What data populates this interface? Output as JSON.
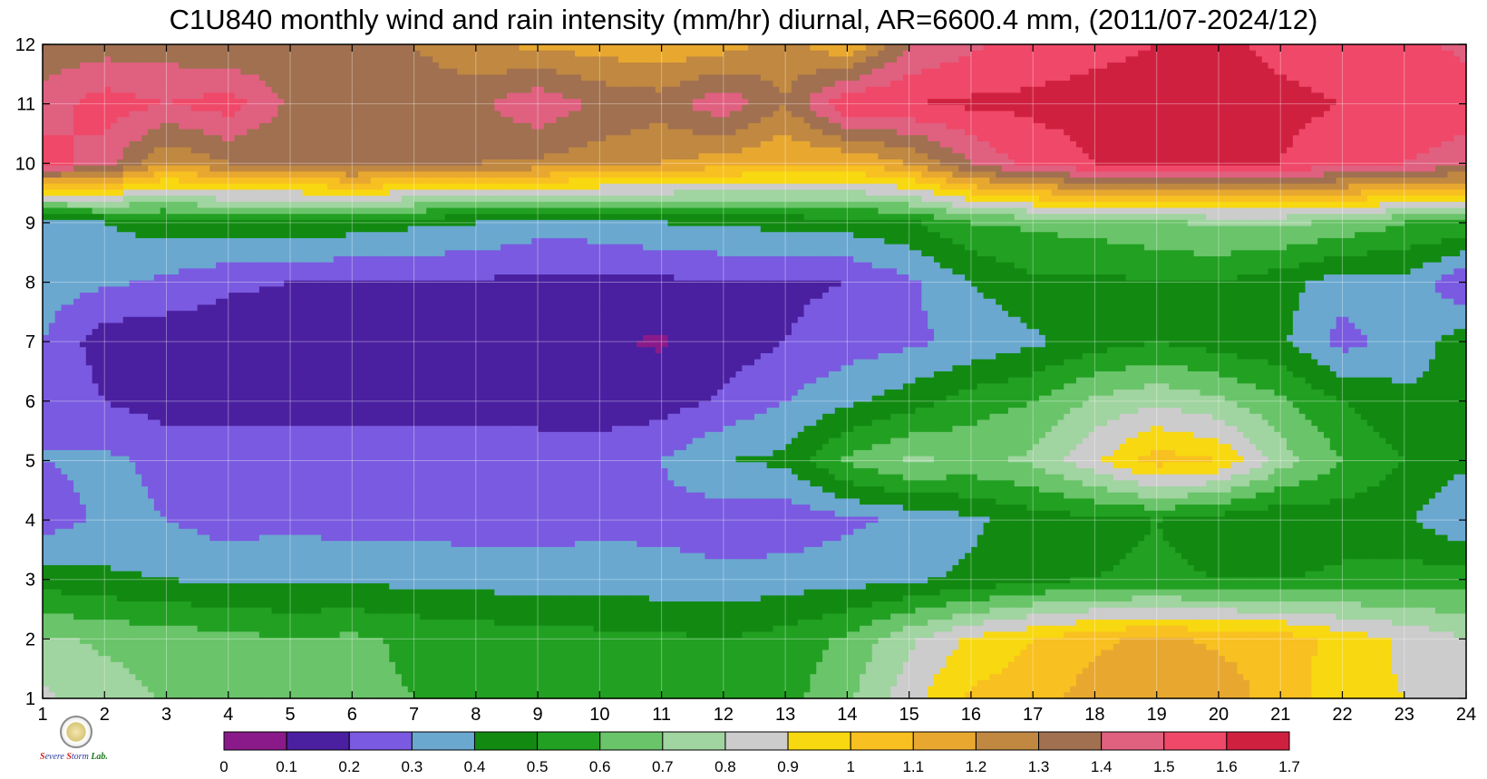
{
  "chart_data": {
    "type": "heatmap",
    "title": "C1U840 monthly wind and rain intensity (mm/hr) diurnal, AR=6600.4 mm, (2011/07-2024/12)",
    "xlabel": "",
    "ylabel": "",
    "x": [
      1,
      2,
      3,
      4,
      5,
      6,
      7,
      8,
      9,
      10,
      11,
      12,
      13,
      14,
      15,
      16,
      17,
      18,
      19,
      20,
      21,
      22,
      23,
      24
    ],
    "y": [
      1,
      2,
      3,
      4,
      5,
      6,
      7,
      8,
      9,
      10,
      11,
      12
    ],
    "xlim": [
      1,
      24
    ],
    "ylim": [
      1,
      12
    ],
    "x_ticks": [
      "1",
      "2",
      "3",
      "4",
      "5",
      "6",
      "7",
      "8",
      "9",
      "10",
      "11",
      "12",
      "13",
      "14",
      "15",
      "16",
      "17",
      "18",
      "19",
      "20",
      "21",
      "22",
      "23",
      "24"
    ],
    "y_ticks": [
      "1",
      "2",
      "3",
      "4",
      "5",
      "6",
      "7",
      "8",
      "9",
      "10",
      "11",
      "12"
    ],
    "z": [
      [
        0.82,
        0.75,
        0.69,
        0.64,
        0.62,
        0.63,
        0.6,
        0.57,
        0.53,
        0.52,
        0.53,
        0.52,
        0.56,
        0.68,
        0.86,
        1.02,
        1.05,
        1.15,
        1.2,
        1.16,
        1.05,
        0.94,
        0.9,
        0.9
      ],
      [
        0.72,
        0.68,
        0.66,
        0.63,
        0.6,
        0.62,
        0.58,
        0.56,
        0.54,
        0.53,
        0.52,
        0.5,
        0.54,
        0.62,
        0.78,
        0.92,
        1.0,
        1.08,
        1.12,
        1.08,
        1.06,
        0.96,
        0.88,
        0.8
      ],
      [
        0.45,
        0.42,
        0.4,
        0.38,
        0.38,
        0.38,
        0.37,
        0.36,
        0.35,
        0.35,
        0.34,
        0.33,
        0.35,
        0.36,
        0.38,
        0.42,
        0.48,
        0.5,
        0.52,
        0.5,
        0.5,
        0.52,
        0.55,
        0.55
      ],
      [
        0.25,
        0.32,
        0.3,
        0.25,
        0.28,
        0.25,
        0.27,
        0.25,
        0.26,
        0.27,
        0.27,
        0.24,
        0.23,
        0.28,
        0.32,
        0.38,
        0.45,
        0.47,
        0.5,
        0.45,
        0.41,
        0.45,
        0.42,
        0.3
      ],
      [
        0.3,
        0.32,
        0.28,
        0.3,
        0.26,
        0.3,
        0.28,
        0.28,
        0.28,
        0.27,
        0.3,
        0.4,
        0.42,
        0.62,
        0.72,
        0.68,
        0.72,
        0.88,
        1.05,
        1.0,
        0.75,
        0.6,
        0.5,
        0.42
      ],
      [
        0.3,
        0.2,
        0.15,
        0.12,
        0.15,
        0.14,
        0.15,
        0.14,
        0.13,
        0.13,
        0.15,
        0.22,
        0.3,
        0.38,
        0.45,
        0.55,
        0.6,
        0.72,
        0.78,
        0.72,
        0.62,
        0.5,
        0.42,
        0.4
      ],
      [
        0.3,
        0.14,
        0.13,
        0.13,
        0.14,
        0.14,
        0.14,
        0.15,
        0.12,
        0.11,
        0.09,
        0.14,
        0.2,
        0.25,
        0.28,
        0.32,
        0.38,
        0.45,
        0.5,
        0.45,
        0.42,
        0.26,
        0.35,
        0.45
      ],
      [
        0.35,
        0.32,
        0.28,
        0.22,
        0.2,
        0.2,
        0.2,
        0.19,
        0.17,
        0.17,
        0.18,
        0.19,
        0.18,
        0.2,
        0.28,
        0.4,
        0.48,
        0.47,
        0.5,
        0.5,
        0.44,
        0.35,
        0.38,
        0.2
      ],
      [
        0.32,
        0.4,
        0.45,
        0.48,
        0.48,
        0.45,
        0.42,
        0.4,
        0.35,
        0.36,
        0.4,
        0.42,
        0.43,
        0.45,
        0.48,
        0.6,
        0.62,
        0.65,
        0.68,
        0.72,
        0.72,
        0.68,
        0.6,
        0.6
      ],
      [
        1.55,
        1.45,
        1.2,
        1.3,
        1.3,
        1.38,
        1.35,
        1.3,
        1.28,
        1.25,
        1.2,
        1.15,
        1.1,
        1.1,
        1.2,
        1.4,
        1.55,
        1.6,
        1.6,
        1.62,
        1.6,
        1.55,
        1.5,
        1.45
      ],
      [
        1.45,
        1.55,
        1.5,
        1.55,
        1.38,
        1.35,
        1.38,
        1.38,
        1.48,
        1.38,
        1.35,
        1.48,
        1.3,
        1.6,
        1.6,
        1.62,
        1.62,
        1.63,
        1.63,
        1.63,
        1.62,
        1.6,
        1.58,
        1.55
      ],
      [
        1.32,
        1.35,
        1.35,
        1.3,
        1.32,
        1.3,
        1.3,
        1.2,
        1.18,
        1.15,
        1.12,
        1.15,
        1.25,
        1.1,
        1.4,
        1.48,
        1.55,
        1.58,
        1.6,
        1.62,
        1.58,
        1.55,
        1.52,
        1.48
      ]
    ],
    "levels": [
      0,
      0.1,
      0.2,
      0.3,
      0.4,
      0.5,
      0.6,
      0.7,
      0.8,
      0.9,
      1,
      1.1,
      1.2,
      1.3,
      1.4,
      1.5,
      1.6,
      1.7
    ],
    "colorbar": {
      "labels": [
        "0",
        "0.1",
        "0.2",
        "0.3",
        "0.4",
        "0.5",
        "0.6",
        "0.7",
        "0.8",
        "0.9",
        "1",
        "1.1",
        "1.2",
        "1.3",
        "1.4",
        "1.5",
        "1.6",
        "1.7"
      ],
      "colors": [
        "#8a1a8a",
        "#4a20a0",
        "#7a5ae0",
        "#6aa8d0",
        "#128a12",
        "#22a022",
        "#6ac46a",
        "#a0d4a0",
        "#cccccc",
        "#f8d810",
        "#f8c020",
        "#e8a830",
        "#c08840",
        "#a07050",
        "#e06080",
        "#f04868",
        "#d02040"
      ]
    },
    "contour_line_color": "#f0a020",
    "grid": true
  },
  "logo": {
    "text_1": "S",
    "text_2": "evere",
    "text_3": "S",
    "text_4": "torm",
    "text_5": "Lab."
  }
}
